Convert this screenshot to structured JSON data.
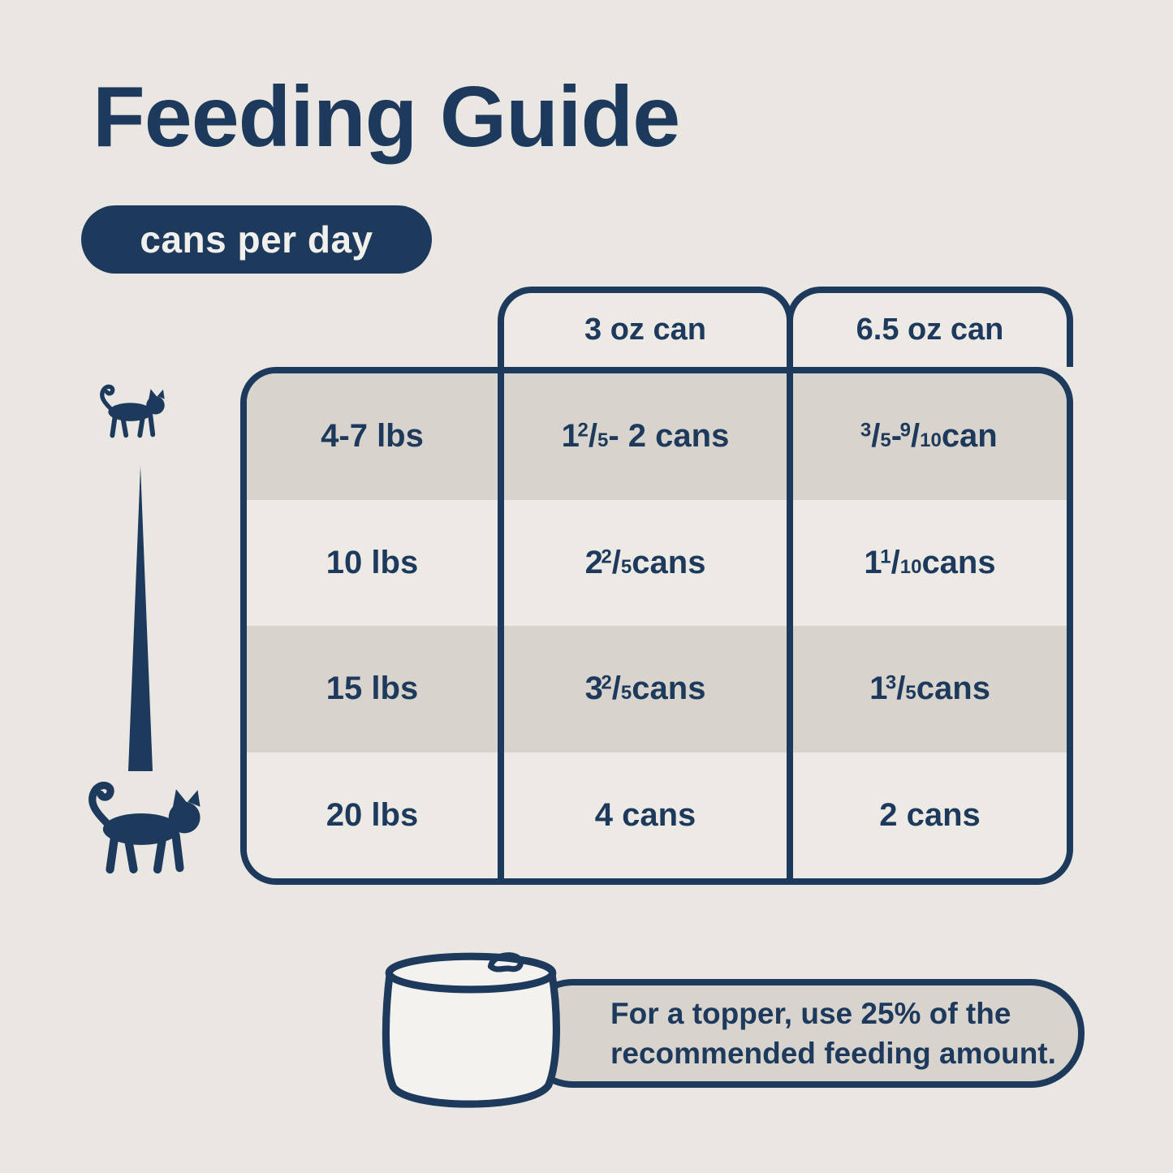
{
  "page": {
    "title": "Feeding Guide",
    "badge": "cans per day"
  },
  "table": {
    "columns": [
      "3 oz can",
      "6.5 oz can"
    ],
    "rows": [
      {
        "weight": "4-7 lbs",
        "small_can": "1 {2/5} - 2 cans",
        "large_can": "{3/5} - {9/10} can"
      },
      {
        "weight": "10 lbs",
        "small_can": "2 {2/5} cans",
        "large_can": "1 {1/10} cans"
      },
      {
        "weight": "15 lbs",
        "small_can": "3 {2/5} cans",
        "large_can": "1 {3/5} cans"
      },
      {
        "weight": "20 lbs",
        "small_can": "4 cans",
        "large_can": "2 cans"
      }
    ]
  },
  "note": {
    "line1": "For a topper, use 25% of the",
    "line2": "recommended feeding amount."
  },
  "icons": {
    "top_left": "small-cat-icon",
    "between": "weight-taper-triangle",
    "bottom_left": "large-cat-icon",
    "note_left": "cat-food-can-icon"
  },
  "colors": {
    "navy": "#1D3A5C",
    "background": "#EAE7E2",
    "row_shade": "#D8D3CC",
    "row_light": "#EDEAE5",
    "badge_text": "#F2F0EC",
    "can_fill": "#F4F2EE"
  },
  "chart_data": {
    "type": "table",
    "title": "Feeding Guide",
    "subtitle": "cans per day",
    "categories": [
      "4-7 lbs",
      "10 lbs",
      "15 lbs",
      "20 lbs"
    ],
    "series": [
      {
        "name": "3 oz can",
        "values": [
          "1 2/5 - 2 cans",
          "2 2/5 cans",
          "3 2/5 cans",
          "4 cans"
        ]
      },
      {
        "name": "6.5 oz can",
        "values": [
          "3/5 - 9/10 can",
          "1 1/10 cans",
          "1 3/5 cans",
          "2 cans"
        ]
      }
    ],
    "note": "For a topper, use 25% of the recommended feeding amount."
  }
}
